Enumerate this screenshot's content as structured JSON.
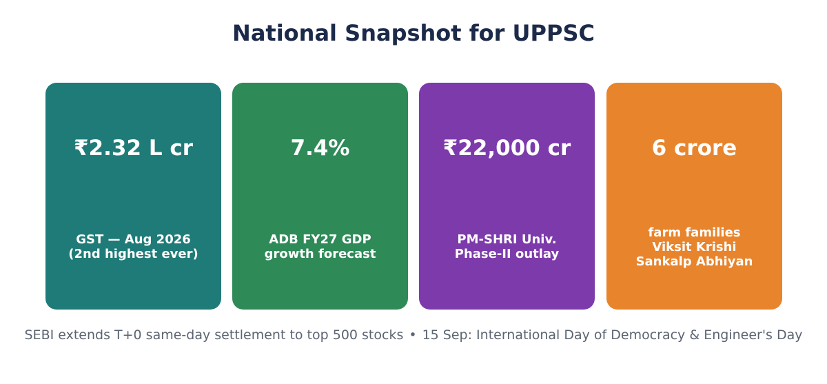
{
  "title": "National Snapshot for UPPSC",
  "cards": [
    {
      "value": "₹2.32 L cr",
      "label_lines": [
        "GST — Aug 2026",
        "(2nd highest ever)"
      ],
      "color": "#1e7b78"
    },
    {
      "value": "7.4%",
      "label_lines": [
        "ADB FY27 GDP",
        "growth forecast"
      ],
      "color": "#2e8a57"
    },
    {
      "value": "₹22,000 cr",
      "label_lines": [
        "PM-SHRI Univ.",
        "Phase-II outlay"
      ],
      "color": "#7d3aab"
    },
    {
      "value": "6 crore",
      "label_lines": [
        "farm families",
        "Viksit Krishi",
        "Sankalp Abhiyan"
      ],
      "color": "#e8842c"
    }
  ],
  "footer": {
    "left": "SEBI extends T+0 same-day settlement to top 500 stocks",
    "separator": "•",
    "right": "15 Sep: International Day of Democracy & Engineer's Day"
  }
}
